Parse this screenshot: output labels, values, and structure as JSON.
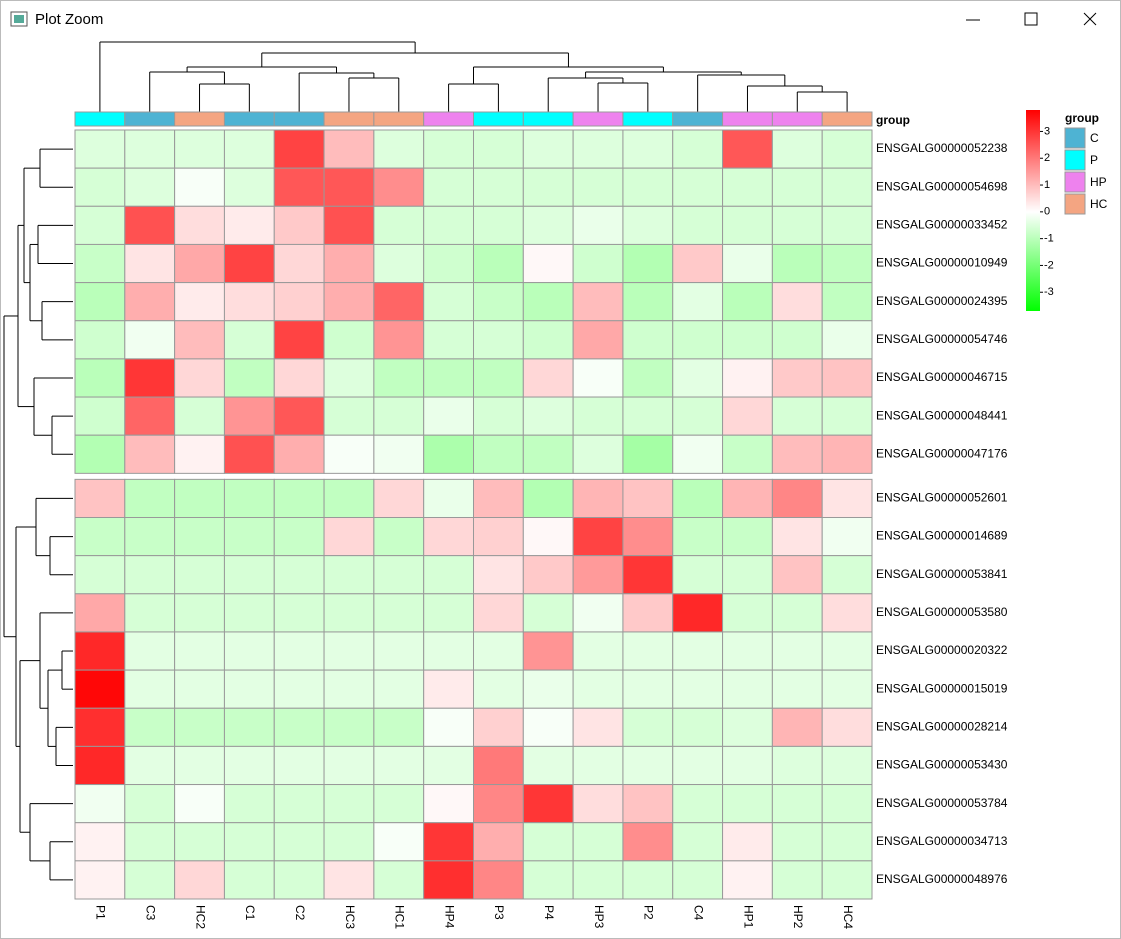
{
  "window": {
    "title": "Plot Zoom"
  },
  "chart_data": {
    "type": "heatmap",
    "columns": [
      "P1",
      "C3",
      "HC2",
      "C1",
      "C2",
      "HC3",
      "HC1",
      "HP4",
      "P3",
      "P4",
      "HP3",
      "P2",
      "C4",
      "HP1",
      "HP2",
      "HC4"
    ],
    "rows": [
      "ENSGALG00000052238",
      "ENSGALG00000054698",
      "ENSGALG00000033452",
      "ENSGALG00000010949",
      "ENSGALG00000024395",
      "ENSGALG00000054746",
      "ENSGALG00000046715",
      "ENSGALG00000048441",
      "ENSGALG00000047176",
      "ENSGALG00000052601",
      "ENSGALG00000014689",
      "ENSGALG00000053841",
      "ENSGALG00000053580",
      "ENSGALG00000020322",
      "ENSGALG00000015019",
      "ENSGALG00000028214",
      "ENSGALG00000053430",
      "ENSGALG00000053784",
      "ENSGALG00000034713",
      "ENSGALG00000048976"
    ],
    "row_split": 9,
    "values": [
      [
        -0.5,
        -0.5,
        -0.5,
        -0.5,
        2.8,
        1.0,
        -0.5,
        -0.6,
        -0.6,
        -0.5,
        -0.5,
        -0.5,
        -0.6,
        2.5,
        -0.5,
        -0.6
      ],
      [
        -0.6,
        -0.5,
        -0.1,
        -0.5,
        2.5,
        2.5,
        1.7,
        -0.6,
        -0.6,
        -0.6,
        -0.6,
        -0.6,
        -0.6,
        -0.6,
        -0.6,
        -0.6
      ],
      [
        -0.6,
        2.6,
        0.5,
        0.3,
        0.8,
        2.6,
        -0.6,
        -0.6,
        -0.6,
        -0.5,
        -0.3,
        -0.5,
        -0.6,
        -0.6,
        -0.6,
        -0.6
      ],
      [
        -0.8,
        0.4,
        1.3,
        2.8,
        0.6,
        1.2,
        -0.5,
        -0.7,
        -1.0,
        0.1,
        -0.7,
        -1.1,
        0.8,
        -0.3,
        -1.0,
        -0.9
      ],
      [
        -1.0,
        1.2,
        0.3,
        0.5,
        0.7,
        1.2,
        2.3,
        -0.6,
        -0.8,
        -1.0,
        1.0,
        -1.0,
        -0.4,
        -1.0,
        0.5,
        -0.9
      ],
      [
        -0.7,
        -0.2,
        1.0,
        -0.6,
        2.8,
        -0.7,
        1.6,
        -0.6,
        -0.6,
        -0.7,
        1.3,
        -0.7,
        -0.7,
        -0.7,
        -0.7,
        -0.3
      ],
      [
        -1.0,
        3.0,
        0.6,
        -0.9,
        0.6,
        -0.5,
        -0.9,
        -0.9,
        -0.9,
        0.6,
        -0.1,
        -0.9,
        -0.4,
        0.2,
        0.8,
        0.9
      ],
      [
        -0.7,
        2.3,
        -0.6,
        1.6,
        2.5,
        -0.6,
        -0.6,
        -0.3,
        -0.6,
        -0.5,
        -0.6,
        -0.6,
        -0.6,
        0.6,
        -0.6,
        -0.6
      ],
      [
        -1.1,
        1.0,
        0.2,
        2.6,
        1.2,
        -0.1,
        -0.2,
        -1.2,
        -0.9,
        -0.9,
        -0.5,
        -1.3,
        -0.2,
        -0.8,
        1.0,
        1.1
      ],
      [
        0.9,
        -0.9,
        -0.9,
        -0.9,
        -0.9,
        -0.9,
        0.6,
        -0.3,
        1.0,
        -1.1,
        1.1,
        0.9,
        -1.0,
        1.1,
        1.8,
        0.4
      ],
      [
        -0.8,
        -0.8,
        -0.8,
        -0.8,
        -0.8,
        0.6,
        -0.8,
        0.6,
        0.7,
        0.1,
        2.8,
        1.7,
        -0.8,
        -0.8,
        0.4,
        -0.2
      ],
      [
        -0.6,
        -0.6,
        -0.6,
        -0.6,
        -0.6,
        -0.6,
        -0.6,
        -0.6,
        0.4,
        0.8,
        1.5,
        3.0,
        -0.6,
        -0.6,
        0.9,
        -0.6
      ],
      [
        1.3,
        -0.6,
        -0.6,
        -0.6,
        -0.6,
        -0.6,
        -0.6,
        -0.6,
        0.6,
        -0.6,
        -0.2,
        0.8,
        3.2,
        -0.6,
        -0.6,
        0.5
      ],
      [
        3.2,
        -0.4,
        -0.4,
        -0.4,
        -0.4,
        -0.4,
        -0.4,
        -0.4,
        -0.4,
        1.6,
        -0.4,
        -0.4,
        -0.4,
        -0.4,
        -0.4,
        -0.4
      ],
      [
        3.7,
        -0.4,
        -0.4,
        -0.4,
        -0.4,
        -0.4,
        -0.4,
        0.3,
        -0.4,
        -0.3,
        -0.4,
        -0.4,
        -0.4,
        -0.4,
        -0.4,
        -0.4
      ],
      [
        3.1,
        -0.8,
        -0.8,
        -0.8,
        -0.8,
        -0.8,
        -0.8,
        -0.1,
        0.7,
        -0.1,
        0.4,
        -0.6,
        -0.6,
        -0.5,
        1.1,
        0.5
      ],
      [
        3.2,
        -0.4,
        -0.4,
        -0.4,
        -0.4,
        -0.4,
        -0.4,
        -0.4,
        2.0,
        -0.4,
        -0.4,
        -0.4,
        -0.4,
        -0.4,
        -0.5,
        -0.5
      ],
      [
        -0.2,
        -0.6,
        -0.1,
        -0.6,
        -0.6,
        -0.6,
        -0.6,
        0.1,
        1.8,
        3.0,
        0.5,
        0.9,
        -0.6,
        -0.6,
        -0.6,
        -0.6
      ],
      [
        0.2,
        -0.6,
        -0.6,
        -0.6,
        -0.6,
        -0.6,
        -0.1,
        3.0,
        1.2,
        -0.6,
        -0.6,
        1.7,
        -0.6,
        0.3,
        -0.6,
        -0.6
      ],
      [
        0.2,
        -0.6,
        0.6,
        -0.6,
        -0.6,
        0.4,
        -0.6,
        3.1,
        1.8,
        -0.6,
        -0.6,
        -0.6,
        -0.6,
        0.2,
        -0.6,
        -0.6
      ]
    ],
    "zlim": [
      -3.7,
      3.8
    ],
    "zticks": [
      3,
      2,
      1,
      0,
      -1,
      -2,
      -3
    ],
    "colors": {
      "low": "#00ff00",
      "mid": "#ffffff",
      "high": "#ff0000"
    },
    "annotation_title": "group",
    "column_group": [
      "P",
      "C",
      "HC",
      "C",
      "C",
      "HC",
      "HC",
      "HP",
      "P",
      "P",
      "HP",
      "P",
      "C",
      "HP",
      "HP",
      "HC"
    ],
    "groups": [
      {
        "name": "C",
        "color": "#4eb3d3"
      },
      {
        "name": "P",
        "color": "#00ffff"
      },
      {
        "name": "HP",
        "color": "#ee82ee"
      },
      {
        "name": "HC",
        "color": "#f4a582"
      }
    ]
  }
}
